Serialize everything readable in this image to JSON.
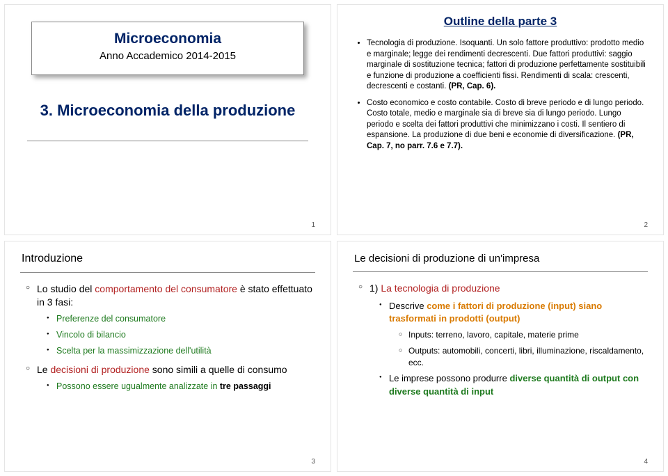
{
  "colors": {
    "navy": "#002366",
    "red": "#b22222",
    "green": "#1e7a1e",
    "orange": "#d97a00",
    "text": "#000000",
    "grey": "#555555"
  },
  "fonts": {
    "s1_title_size": 21,
    "s1_sub_size": 15,
    "s1_heading_size": 22,
    "s2_title_size": 17,
    "s2_body_size": 11.5,
    "s3_head_size": 16,
    "s3_body_size": 14,
    "s3_sub_size": 12.5,
    "s4_head_size": 15,
    "s4_body_size": 14,
    "s4_sub_size": 13,
    "s4_sub2_size": 12
  },
  "slide1": {
    "title": "Microeconomia",
    "subtitle": "Anno Accademico 2014-2015",
    "heading": "3. Microeconomia della produzione",
    "page": "1"
  },
  "slide2": {
    "title": "Outline della parte 3",
    "b1a": "Tecnologia di produzione. Isoquanti. Un solo fattore produttivo: prodotto medio e marginale; legge dei rendimenti decrescenti. Due fattori produttivi: saggio marginale di sostituzione tecnica; fattori di produzione perfettamente sostituibili e funzione di produzione a coefficienti fissi. Rendimenti di scala: crescenti, decrescenti e costanti. ",
    "b1b": "(PR, Cap. 6).",
    "b2a": "Costo economico e costo contabile. Costo di breve periodo e di lungo periodo. Costo totale, medio e marginale sia di breve sia di lungo periodo. Lungo periodo e scelta dei fattori produttivi che minimizzano i costi. Il sentiero di espansione. La produzione di due beni e economie di diversificazione. ",
    "b2b": "(PR, Cap. 7, no parr. 7.6 e 7.7).",
    "page": "2"
  },
  "slide3": {
    "head": "Introduzione",
    "l1a": "Lo studio del ",
    "l1b": "comportamento del consumatore",
    "l1c": " è stato effettuato in 3 fasi:",
    "s1": "Preferenze del consumatore",
    "s2": "Vincolo di bilancio",
    "s3": "Scelta per la massimizzazione dell'utilità",
    "l2a": "Le ",
    "l2b": "decisioni di produzione",
    "l2c": " sono simili a quelle di consumo",
    "s4a": "Possono essere ugualmente analizzate in ",
    "s4b": "tre passaggi",
    "page": "3"
  },
  "slide4": {
    "head": "Le decisioni di produzione di un'impresa",
    "l1_num": "1)",
    "l1": "La tecnologia di produzione",
    "s1a": "Descrive ",
    "s1b": "come i fattori di produzione (input) siano trasformati in prodotti (output)",
    "ss1": "Inputs: terreno, lavoro, capitale, materie prime",
    "ss2": "Outputs: automobili, concerti, libri, illuminazione, riscaldamento, ecc.",
    "s2a": "Le imprese possono produrre ",
    "s2b": "diverse quantità di output con diverse quantità di input",
    "page": "4"
  }
}
